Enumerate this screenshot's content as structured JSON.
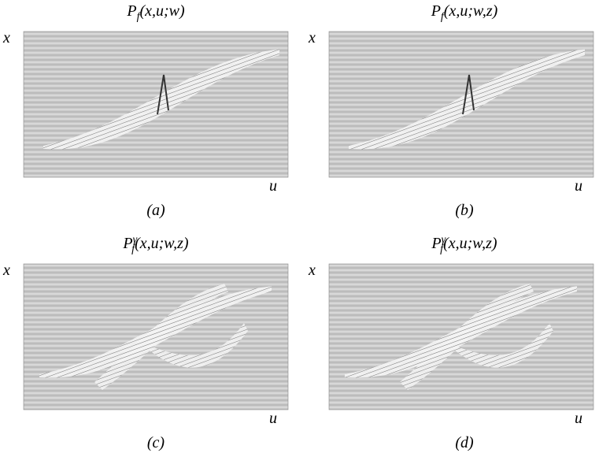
{
  "panels": [
    {
      "title": {
        "base": "P",
        "sub": "f",
        "args": "(x,u;w)"
      },
      "y_label": "x",
      "x_label": "u",
      "caption": "(a)"
    },
    {
      "title": {
        "base": "P",
        "sub": "f",
        "args": "(x,u;w,z)"
      },
      "y_label": "x",
      "x_label": "u",
      "caption": "(b)"
    },
    {
      "title": {
        "base": "P",
        "sup": "γ",
        "sub": "f",
        "args": "(x,u;w,z)"
      },
      "y_label": "x",
      "x_label": "u",
      "caption": "(c)"
    },
    {
      "title": {
        "base": "P",
        "sup": "γ",
        "sub": "f",
        "args": "(x,u;w,z)"
      },
      "y_label": "x",
      "x_label": "u",
      "caption": "(d)"
    }
  ]
}
